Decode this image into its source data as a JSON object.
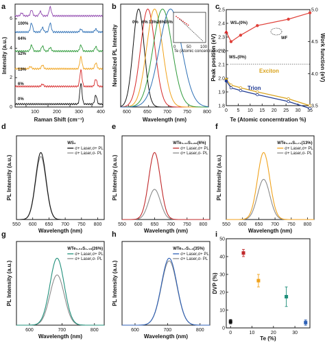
{
  "panels": {
    "a": {
      "label": "a",
      "xlabel": "Raman Shift  (cm⁻¹)",
      "ylabel": "Intensity (a.u.)",
      "xticks": [
        "100",
        "200",
        "300",
        "400"
      ],
      "yticks": [
        "0",
        "2",
        "4",
        "6"
      ],
      "spectra": [
        {
          "label": "100%",
          "color": "#8e44ad"
        },
        {
          "label": "64%",
          "color": "#2c6fb5"
        },
        {
          "label": "52%",
          "color": "#2e9a3a"
        },
        {
          "label": "13%",
          "color": "#f0a21b"
        },
        {
          "label": "6%",
          "color": "#d62728"
        },
        {
          "label": "0%",
          "color": "#111111"
        }
      ]
    },
    "b": {
      "label": "b",
      "xlabel": "Wavelength (nm)",
      "ylabel": "Normalized PL Intensity",
      "xticks": [
        "600",
        "650",
        "700",
        "750",
        "800"
      ],
      "peak_labels": [
        {
          "text": "0%",
          "color": "#111111"
        },
        {
          "text": "6%",
          "color": "#d62728"
        },
        {
          "text": "13%",
          "color": "#f0a21b"
        },
        {
          "text": "26%",
          "color": "#2e9a3a"
        },
        {
          "text": "35%",
          "color": "#2c6fb5"
        }
      ],
      "inset": {
        "xlabel": "Te (Atomic concentration %)",
        "xticks": [
          "0",
          "50",
          "100"
        ]
      }
    },
    "c": {
      "label": "c",
      "xlabel": "Te (Atomic concerntration %)",
      "ylabel": "Peak position (eV)",
      "ylabel2": "Work function (eV)",
      "xticks": [
        "0",
        "5",
        "10",
        "15",
        "20",
        "25",
        "30",
        "35"
      ],
      "yticks": [
        "1.8",
        "1.9",
        "2.0",
        "2.1",
        "2.2",
        "2.3",
        "2.4",
        "2.5"
      ],
      "yticks2": [
        "3.5",
        "4.0",
        "4.5",
        "5.0"
      ],
      "annotations": {
        "ws2_top": "WS₂(0%)",
        "ws2_mid": "WS₂(0%)",
        "wf": "WF",
        "exciton": "Exciton",
        "trion": "Trion"
      }
    },
    "d": {
      "label": "d",
      "title": "WS₂",
      "legend": [
        "σ+ Laser,σ+ PL",
        "σ+ Laser,σ- PL"
      ],
      "colors": [
        "#111111",
        "#8a8a8a"
      ],
      "ylabel": "PL Intensity (a.u.)",
      "xlabel": "Wavelength (nm)",
      "xticks": [
        "550",
        "600",
        "650",
        "700",
        "750",
        "800"
      ]
    },
    "e": {
      "label": "e",
      "title": "WTe₀.₁₂S₁.₈₈(6%)",
      "legend": [
        "σ+ Laser,σ+ PL",
        "σ+ Laser,σ- PL"
      ],
      "colors": [
        "#c0282a",
        "#8a8a8a"
      ],
      "ylabel": "PL Intensity (a.u.)",
      "xlabel": "Wavelength (nm)",
      "xticks": [
        "550",
        "600",
        "650",
        "700",
        "750",
        "800"
      ]
    },
    "f": {
      "label": "f",
      "title": "WTe₀.₂₆S₁.₇₄(13%)",
      "legend": [
        "σ+ Laser,σ+ PL",
        "σ+ Laser,σ- PL"
      ],
      "colors": [
        "#f0a21b",
        "#8a8a8a"
      ],
      "ylabel": "PL Intensity (a.u.)",
      "xlabel": "Wavelength (nm)",
      "xticks": [
        "550",
        "600",
        "650",
        "700",
        "750",
        "800"
      ]
    },
    "g": {
      "label": "g",
      "title": "WTe₀.₅₂S₁.₄₈(26%)",
      "legend": [
        "σ+ Laser,σ+ PL",
        "σ+ Laser,σ- PL"
      ],
      "colors": [
        "#1f8f7a",
        "#8a8a8a"
      ],
      "ylabel": "PL Intensity (a.u.)",
      "xlabel": "Wavelength (nm)",
      "xticks": [
        "600",
        "700",
        "800"
      ]
    },
    "h": {
      "label": "h",
      "title": "WTe₀.₇S₁.₃(35%)",
      "legend": [
        "σ+ Laser,σ+ PL",
        "σ+ Laser,σ- PL"
      ],
      "colors": [
        "#2c5fb5",
        "#8a8a8a"
      ],
      "ylabel": "PL Intensity (a.u.)",
      "xlabel": "Wavelength (nm)",
      "xticks": [
        "600",
        "700",
        "800"
      ]
    },
    "i": {
      "label": "i",
      "xlabel": "Te (%)",
      "ylabel": "DVP (%)",
      "xticks": [
        "0",
        "10",
        "20",
        "30"
      ],
      "yticks": [
        "0",
        "10",
        "20",
        "30",
        "40",
        "50"
      ]
    }
  },
  "chart_data": [
    {
      "type": "line",
      "panel": "a",
      "xlabel": "Raman Shift  (cm⁻¹)",
      "ylabel": "Intensity (a.u.)",
      "xlim": [
        50,
        450
      ],
      "ylim": [
        0,
        7
      ],
      "series": [
        {
          "name": "0%",
          "offset": 0.2,
          "peaks": [
            [
              350,
              1.4
            ],
            [
              418,
              0.6
            ]
          ]
        },
        {
          "name": "6%",
          "offset": 1.4,
          "peaks": [
            [
              350,
              1.1
            ],
            [
              418,
              0.5
            ],
            [
              175,
              0.15
            ]
          ]
        },
        {
          "name": "13%",
          "offset": 2.6,
          "peaks": [
            [
              350,
              0.8
            ],
            [
              418,
              0.4
            ],
            [
              175,
              0.25
            ],
            [
              120,
              0.15
            ]
          ]
        },
        {
          "name": "52%",
          "offset": 3.8,
          "peaks": [
            [
              350,
              0.4
            ],
            [
              418,
              0.3
            ],
            [
              175,
              0.35
            ],
            [
              125,
              0.4
            ],
            [
              210,
              0.25
            ]
          ]
        },
        {
          "name": "64%",
          "offset": 5.1,
          "peaks": [
            [
              125,
              0.6
            ],
            [
              175,
              0.3
            ],
            [
              210,
              0.6
            ],
            [
              350,
              0.2
            ],
            [
              418,
              0.2
            ]
          ]
        },
        {
          "name": "100%",
          "offset": 6.2,
          "peaks": [
            [
              80,
              0.2
            ],
            [
              125,
              0.4
            ],
            [
              165,
              0.3
            ],
            [
              210,
              0.6
            ]
          ]
        }
      ]
    },
    {
      "type": "line",
      "panel": "b",
      "xlabel": "Wavelength (nm)",
      "ylabel": "Normalized PL Intensity",
      "xlim": [
        580,
        800
      ],
      "ylim": [
        0,
        1.05
      ],
      "series": [
        {
          "name": "0%",
          "center": 625,
          "width": 14
        },
        {
          "name": "6%",
          "center": 648,
          "width": 18
        },
        {
          "name": "13%",
          "center": 665,
          "width": 20
        },
        {
          "name": "26%",
          "center": 685,
          "width": 24
        },
        {
          "name": "35%",
          "center": 705,
          "width": 28
        }
      ]
    },
    {
      "type": "scatter",
      "panel": "c",
      "xlabel": "Te (Atomic concerntration %)",
      "ylabel": "Peak position (eV)",
      "ylabel2": "Work function (eV)",
      "xlim": [
        0,
        35
      ],
      "ylim": [
        1.8,
        2.5
      ],
      "y2lim": [
        3.5,
        5.0
      ],
      "series": [
        {
          "name": "WF",
          "axis": "right",
          "x": [
            0,
            2,
            6,
            13,
            26,
            35
          ],
          "y": [
            4.65,
            4.5,
            4.6,
            4.75,
            4.85,
            4.95
          ]
        },
        {
          "name": "Exciton",
          "axis": "left",
          "x": [
            0,
            2,
            6,
            13,
            26,
            35
          ],
          "y": [
            1.99,
            1.95,
            1.93,
            1.9,
            1.85,
            1.8
          ]
        },
        {
          "name": "Trion",
          "axis": "left",
          "x": [
            0,
            2,
            6,
            13,
            26,
            35
          ],
          "y": [
            1.98,
            1.93,
            1.91,
            1.88,
            1.83,
            1.78
          ]
        }
      ]
    },
    {
      "type": "line",
      "panel": "d",
      "xlim": [
        550,
        820
      ],
      "series": [
        {
          "name": "σ+ Laser,σ+ PL",
          "center": 625,
          "width": 16,
          "amp": 1.0
        },
        {
          "name": "σ+ Laser,σ- PL",
          "center": 625,
          "width": 16,
          "amp": 0.94
        }
      ]
    },
    {
      "type": "line",
      "panel": "e",
      "xlim": [
        550,
        820
      ],
      "series": [
        {
          "name": "σ+ Laser,σ+ PL",
          "center": 650,
          "width": 18,
          "amp": 1.0
        },
        {
          "name": "σ+ Laser,σ- PL",
          "center": 650,
          "width": 18,
          "amp": 0.45
        }
      ]
    },
    {
      "type": "line",
      "panel": "f",
      "xlim": [
        550,
        820
      ],
      "series": [
        {
          "name": "σ+ Laser,σ+ PL",
          "center": 665,
          "width": 19,
          "amp": 1.0
        },
        {
          "name": "σ+ Laser,σ- PL",
          "center": 665,
          "width": 19,
          "amp": 0.6
        }
      ]
    },
    {
      "type": "line",
      "panel": "g",
      "xlim": [
        560,
        830
      ],
      "series": [
        {
          "name": "σ+ Laser,σ+ PL",
          "center": 685,
          "width": 22,
          "amp": 1.0
        },
        {
          "name": "σ+ Laser,σ- PL",
          "center": 685,
          "width": 22,
          "amp": 0.75
        }
      ]
    },
    {
      "type": "line",
      "panel": "h",
      "xlim": [
        560,
        830
      ],
      "series": [
        {
          "name": "σ+ Laser,σ+ PL",
          "center": 705,
          "width": 24,
          "amp": 1.0
        },
        {
          "name": "σ+ Laser,σ- PL",
          "center": 705,
          "width": 24,
          "amp": 0.96
        }
      ]
    },
    {
      "type": "scatter",
      "panel": "i",
      "xlabel": "Te (%)",
      "ylabel": "DVP (%)",
      "xlim": [
        -2,
        37
      ],
      "ylim": [
        0,
        50
      ],
      "points": [
        {
          "x": 0,
          "y": 3.5,
          "err": 1.2,
          "color": "#111111"
        },
        {
          "x": 6,
          "y": 42,
          "err": 2,
          "color": "#c0282a"
        },
        {
          "x": 13,
          "y": 26.5,
          "err": 3.5,
          "color": "#f0a21b"
        },
        {
          "x": 26,
          "y": 17.5,
          "err": 5.5,
          "color": "#1f8f7a"
        },
        {
          "x": 35,
          "y": 3,
          "err": 1.5,
          "color": "#2c5fb5"
        }
      ]
    }
  ]
}
